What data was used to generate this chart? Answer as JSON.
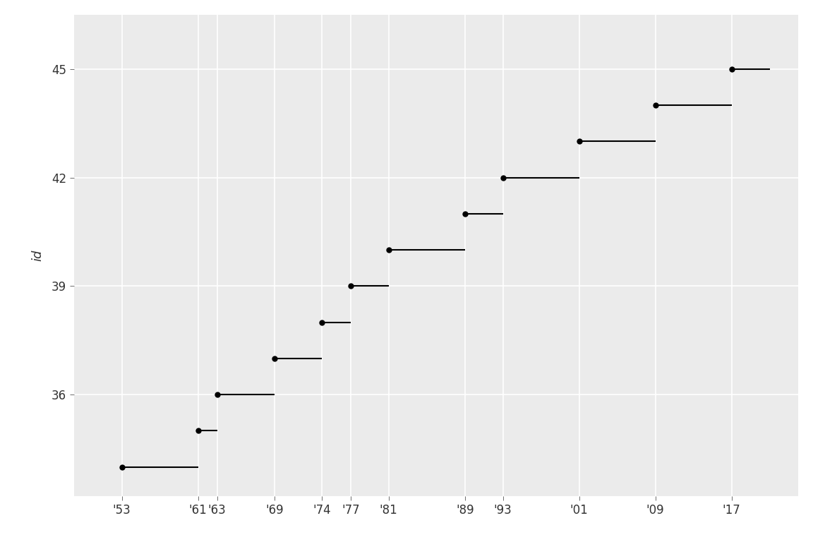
{
  "presidents": [
    {
      "id": 34,
      "start": 1953,
      "end": 1961
    },
    {
      "id": 35,
      "start": 1961,
      "end": 1963
    },
    {
      "id": 36,
      "start": 1963,
      "end": 1969
    },
    {
      "id": 37,
      "start": 1969,
      "end": 1974
    },
    {
      "id": 38,
      "start": 1974,
      "end": 1977
    },
    {
      "id": 39,
      "start": 1977,
      "end": 1981
    },
    {
      "id": 40,
      "start": 1981,
      "end": 1989
    },
    {
      "id": 41,
      "start": 1989,
      "end": 1993
    },
    {
      "id": 42,
      "start": 1993,
      "end": 2001
    },
    {
      "id": 43,
      "start": 2001,
      "end": 2009
    },
    {
      "id": 44,
      "start": 2009,
      "end": 2017
    },
    {
      "id": 45,
      "start": 2017,
      "end": 2021
    }
  ],
  "xtick_years": [
    1953,
    1961,
    1963,
    1969,
    1974,
    1977,
    1981,
    1989,
    1993,
    2001,
    2009,
    2017
  ],
  "xtick_labels": [
    "'53",
    "'61",
    "'63",
    "'69",
    "'74",
    "'77",
    "'81",
    "'89",
    "'93",
    "'01",
    "'09",
    "'17"
  ],
  "ytick_vals": [
    36,
    39,
    42,
    45
  ],
  "ylabel": "id",
  "panel_background": "#EBEBEB",
  "figure_background": "#FFFFFF",
  "line_color": "#000000",
  "point_color": "#000000",
  "point_size": 6,
  "line_width": 1.5,
  "xlim": [
    1948,
    2024
  ],
  "ylim": [
    33.2,
    46.5
  ],
  "grid_color": "#FFFFFF",
  "grid_linewidth": 1.2
}
